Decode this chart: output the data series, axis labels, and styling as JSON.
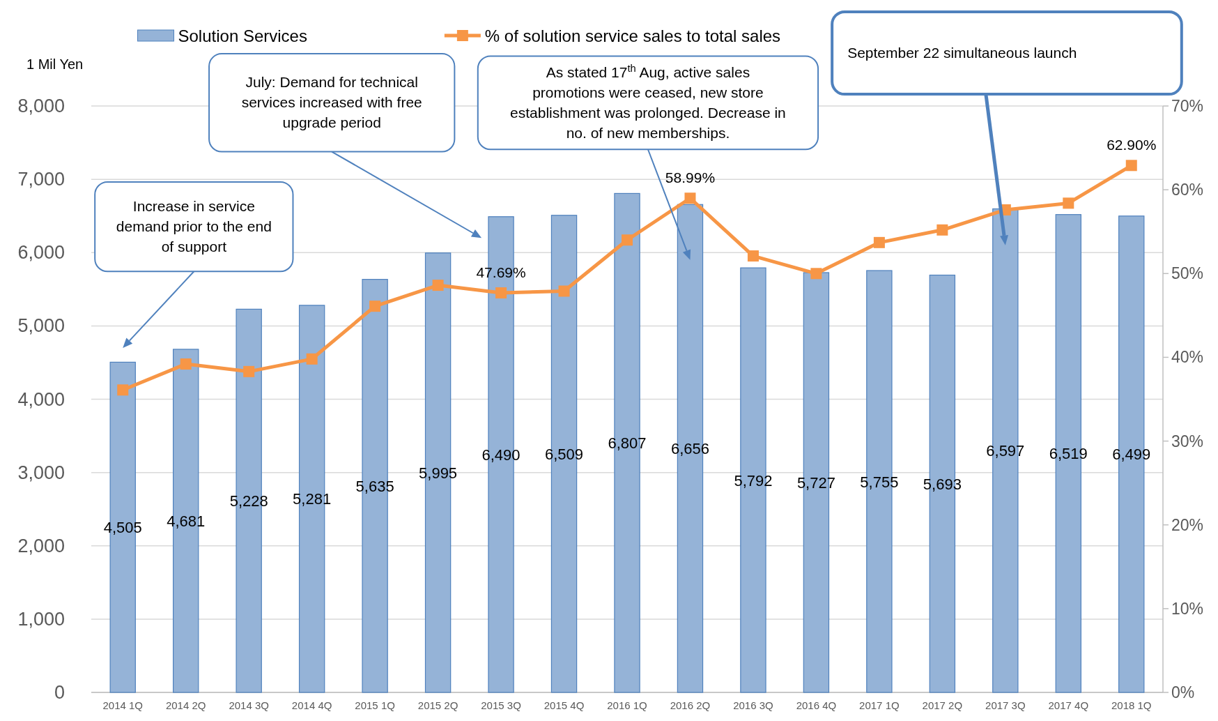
{
  "chart_data": {
    "type": "bar",
    "ylabel": "1 Mil Yen",
    "categories": [
      "2014 1Q",
      "2014 2Q",
      "2014 3Q",
      "2014 4Q",
      "2015 1Q",
      "2015 2Q",
      "2015 3Q",
      "2015 4Q",
      "2016 1Q",
      "2016 2Q",
      "2016 3Q",
      "2016 4Q",
      "2017 1Q",
      "2017 2Q",
      "2017 3Q",
      "2017 4Q",
      "2018 1Q"
    ],
    "series": [
      {
        "name": "Solution Services",
        "color": "#95b3d7",
        "values": [
          4505,
          4681,
          5228,
          5281,
          5635,
          5995,
          6490,
          6509,
          6807,
          6656,
          5792,
          5727,
          5755,
          5693,
          6597,
          6519,
          6499
        ],
        "value_labels": [
          "4,505",
          "4,681",
          "5,228",
          "5,281",
          "5,635",
          "5,995",
          "6,490",
          "6,509",
          "6,807",
          "6,656",
          "5,792",
          "5,727",
          "5,755",
          "5,693",
          "6,597",
          "6,519",
          "6,499"
        ]
      },
      {
        "name": "% of solution service sales to total sales",
        "type": "line",
        "axis": "y2",
        "color": "#f79646",
        "marker": "square",
        "values": [
          36.1,
          39.2,
          38.3,
          39.8,
          46.1,
          48.6,
          47.69,
          47.9,
          54.0,
          58.99,
          52.1,
          50.0,
          53.7,
          55.2,
          57.6,
          58.4,
          62.9
        ],
        "value_labels": [
          null,
          null,
          null,
          null,
          null,
          null,
          "47.69%",
          null,
          null,
          "58.99%",
          null,
          null,
          null,
          null,
          null,
          null,
          "62.90%"
        ]
      }
    ],
    "ylim": [
      0,
      8000
    ],
    "yticks": [
      0,
      {
        "value": 1000,
        "label": "1,000"
      },
      {
        "value": 2000,
        "label": "2,000"
      },
      {
        "value": 3000,
        "label": "3,000"
      },
      {
        "value": 4000,
        "label": "4,000"
      },
      {
        "value": 5000,
        "label": "5,000"
      },
      {
        "value": 6000,
        "label": "6,000"
      },
      {
        "value": 7000,
        "label": "7,000"
      },
      {
        "value": 8000,
        "label": "8,000"
      }
    ],
    "y2lim": [
      0,
      70
    ],
    "y2ticks": [
      {
        "value": 0,
        "label": "0%"
      },
      {
        "value": 10,
        "label": "10%"
      },
      {
        "value": 20,
        "label": "20%"
      },
      {
        "value": 30,
        "label": "30%"
      },
      {
        "value": 40,
        "label": "40%"
      },
      {
        "value": 50,
        "label": "50%"
      },
      {
        "value": 60,
        "label": "60%"
      },
      {
        "value": 70,
        "label": "70%"
      }
    ],
    "grid": "y",
    "legend": "top",
    "annotations": [
      "Increase in service demand prior to the end of support",
      "July: Demand for technical services increased with free upgrade period",
      "As stated 17$^{th}$ Aug, active sales promotions were ceased, new store establishment was prolonged. Decrease in no. of new memberships.",
      "September 22 simultaneous launch"
    ]
  }
}
